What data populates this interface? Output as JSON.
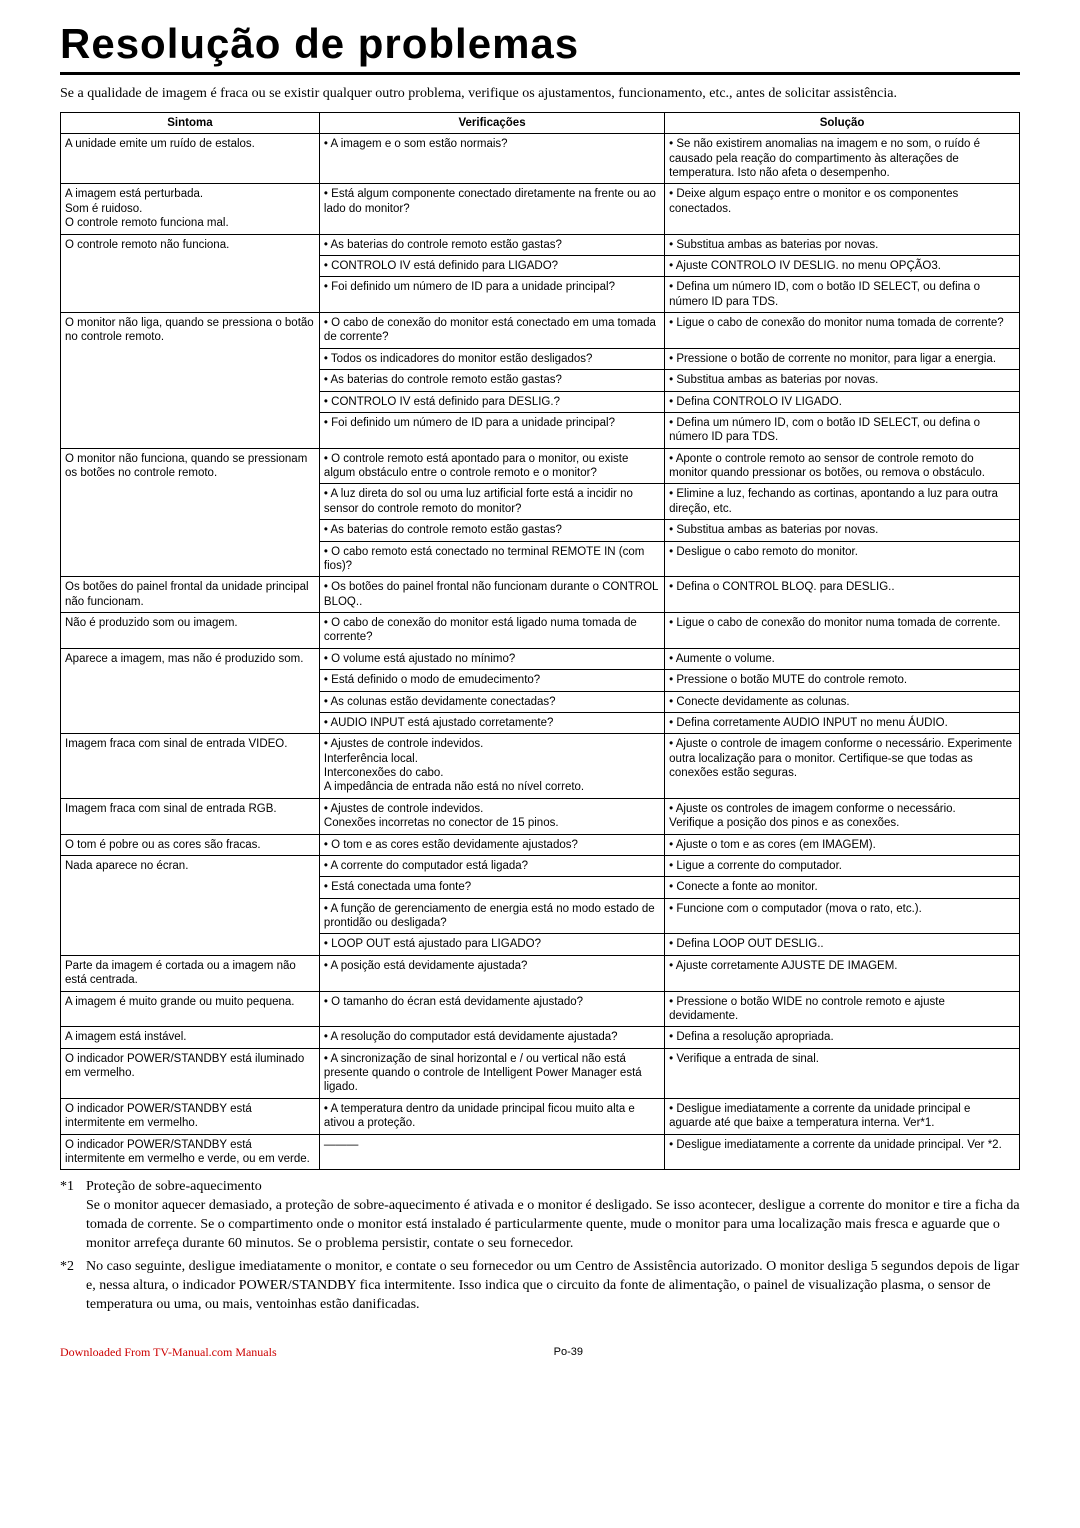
{
  "title": "Resolução de problemas",
  "intro": "Se a qualidade de imagem é fraca ou se existir qualquer outro problema, verifique os ajustamentos, funcionamento, etc., antes de solicitar assistência.",
  "columns": [
    "Sintoma",
    "Verificações",
    "Solução"
  ],
  "rows": [
    {
      "symptom": "A unidade emite um ruído de estalos.",
      "pairs": [
        {
          "c": "• A imagem e o som estão normais?",
          "s": "• Se não existirem anomalias na imagem e no som, o ruído é causado pela reação do compartimento às alterações de temperatura. Isto não afeta o desempenho."
        }
      ]
    },
    {
      "symptom": "A imagem está perturbada.\nSom é ruidoso.\nO controle remoto funciona mal.",
      "pairs": [
        {
          "c": "• Está algum componente conectado diretamente na frente ou ao lado do monitor?",
          "s": "• Deixe algum espaço entre o monitor e os componentes conectados."
        }
      ]
    },
    {
      "symptom": "O controle remoto não funciona.",
      "pairs": [
        {
          "c": "• As baterias do controle remoto estão gastas?",
          "s": "• Substitua ambas as baterias por novas."
        },
        {
          "c": "• CONTROLO IV está definido para LIGADO?",
          "s": "• Ajuste CONTROLO IV DESLIG. no menu OPÇÃO3."
        },
        {
          "c": "• Foi definido um número de ID para a unidade principal?",
          "s": "• Defina um número ID, com o botão ID SELECT, ou defina o número ID para TDS."
        }
      ]
    },
    {
      "symptom": "O monitor não liga, quando se pressiona o botão no controle remoto.",
      "pairs": [
        {
          "c": "• O cabo de conexão do monitor está conectado em uma tomada de corrente?",
          "s": "• Ligue o cabo de conexão do monitor numa tomada de corrente?"
        },
        {
          "c": "• Todos os indicadores do monitor estão desligados?",
          "s": "• Pressione o botão de corrente no monitor, para ligar a energia."
        },
        {
          "c": "• As baterias do controle remoto estão gastas?",
          "s": "• Substitua ambas as baterias por novas."
        },
        {
          "c": "• CONTROLO IV está definido para DESLIG.?",
          "s": "• Defina CONTROLO IV LIGADO."
        },
        {
          "c": "• Foi definido um número de ID para a unidade principal?",
          "s": "• Defina um número ID, com o botão ID SELECT, ou defina o número ID para TDS."
        }
      ]
    },
    {
      "symptom": "O monitor não funciona, quando se pressionam os botões no controle remoto.",
      "pairs": [
        {
          "c": "• O controle remoto está apontado para o monitor, ou existe algum obstáculo entre o controle remoto e o monitor?",
          "s": "• Aponte o controle remoto ao sensor de controle remoto do monitor quando pressionar os botões, ou remova o obstáculo."
        },
        {
          "c": "• A luz direta do sol ou uma luz artificial forte está a incidir no sensor do controle remoto do monitor?",
          "s": "• Elimine a luz, fechando as cortinas, apontando a luz para outra direção, etc."
        },
        {
          "c": "• As baterias do controle remoto estão gastas?",
          "s": "• Substitua ambas as baterias por novas."
        },
        {
          "c": "• O cabo remoto está conectado no terminal REMOTE IN (com fios)?",
          "s": "• Desligue o cabo remoto do monitor."
        }
      ]
    },
    {
      "symptom": "Os botões do painel frontal da unidade principal não funcionam.",
      "pairs": [
        {
          "c": "• Os botões do painel frontal não funcionam durante o CONTROL BLOQ..",
          "s": "• Defina o CONTROL BLOQ. para DESLIG.."
        }
      ]
    },
    {
      "symptom": "Não é produzido som ou imagem.",
      "pairs": [
        {
          "c": "• O cabo de conexão do monitor está ligado numa tomada de corrente?",
          "s": "• Ligue o cabo de conexão do monitor numa tomada de corrente."
        }
      ]
    },
    {
      "symptom": "Aparece a imagem, mas não é produzido som.",
      "pairs": [
        {
          "c": "• O volume está ajustado no mínimo?",
          "s": "• Aumente o volume."
        },
        {
          "c": "• Está definido o modo de emudecimento?",
          "s": "• Pressione o botão MUTE do controle remoto."
        },
        {
          "c": "• As colunas estão devidamente conectadas?",
          "s": "• Conecte devidamente as colunas."
        },
        {
          "c": "• AUDIO INPUT está ajustado corretamente?",
          "s": "• Defina corretamente AUDIO INPUT no menu ÁUDIO."
        }
      ]
    },
    {
      "symptom": "Imagem fraca com sinal de entrada VIDEO.",
      "pairs": [
        {
          "c": "• Ajustes de controle indevidos.\nInterferência local.\nInterconexões do cabo.\nA impedância de entrada não está no nível correto.",
          "s": "• Ajuste o controle de imagem conforme o necessário. Experimente outra localização para o monitor. Certifique-se que todas as conexões estão seguras."
        }
      ]
    },
    {
      "symptom": "Imagem fraca com sinal de entrada RGB.",
      "pairs": [
        {
          "c": "• Ajustes de controle indevidos.\nConexões incorretas no conector de 15 pinos.",
          "s": "• Ajuste os controles de imagem conforme o necessário.\nVerifique a posição dos pinos e as conexões."
        }
      ]
    },
    {
      "symptom": "O tom é pobre ou as cores são fracas.",
      "pairs": [
        {
          "c": "• O tom e as cores estão devidamente ajustados?",
          "s": "• Ajuste o tom e as cores (em IMAGEM)."
        }
      ]
    },
    {
      "symptom": "Nada aparece no écran.",
      "pairs": [
        {
          "c": "• A corrente do computador está ligada?",
          "s": "• Ligue a corrente do computador."
        },
        {
          "c": "• Está conectada uma fonte?",
          "s": "• Conecte a fonte ao monitor."
        },
        {
          "c": "• A função de gerenciamento de energia está no modo estado de prontidão ou desligada?",
          "s": "• Funcione com o computador (mova o rato, etc.)."
        },
        {
          "c": "• LOOP OUT está ajustado para LIGADO?",
          "s": "• Defina LOOP OUT DESLIG.."
        }
      ]
    },
    {
      "symptom": "Parte da imagem é cortada ou a imagem não está centrada.",
      "pairs": [
        {
          "c": "• A posição está devidamente ajustada?",
          "s": "• Ajuste corretamente AJUSTE DE IMAGEM."
        }
      ]
    },
    {
      "symptom": "A imagem é muito grande ou muito pequena.",
      "pairs": [
        {
          "c": "• O tamanho do écran está devidamente ajustado?",
          "s": "• Pressione o botão WIDE no controle remoto e ajuste devidamente."
        }
      ]
    },
    {
      "symptom": "A imagem está instável.",
      "pairs": [
        {
          "c": "• A resolução do computador está devidamente ajustada?",
          "s": "• Defina a resolução apropriada."
        }
      ]
    },
    {
      "symptom": "O indicador POWER/STANDBY está iluminado em vermelho.",
      "pairs": [
        {
          "c": "• A sincronização de sinal horizontal e / ou vertical não está presente quando o controle de Intelligent Power Manager está ligado.",
          "s": "• Verifique a entrada de sinal."
        }
      ]
    },
    {
      "symptom": "O indicador POWER/STANDBY está intermitente em vermelho.",
      "pairs": [
        {
          "c": "• A temperatura dentro da unidade principal ficou muito alta e ativou a proteção.",
          "s": "• Desligue imediatamente a corrente da unidade principal e aguarde até que baixe a temperatura interna. Ver*1."
        }
      ]
    },
    {
      "symptom": "O indicador POWER/STANDBY está intermitente em vermelho e verde, ou em verde.",
      "pairs": [
        {
          "c": "———",
          "s": "• Desligue imediatamente a corrente da unidade principal. Ver *2.",
          "dash": true
        }
      ]
    }
  ],
  "footnotes": [
    {
      "label": "*1",
      "title": "Proteção de sobre-aquecimento",
      "body": "Se o monitor aquecer demasiado, a proteção de sobre-aquecimento é ativada e o monitor é desligado. Se isso acontecer, desligue a corrente do monitor e tire a ficha da tomada de corrente. Se o compartimento onde o monitor está instalado é particularmente quente, mude o monitor para uma localização mais fresca e aguarde que o monitor arrefeça durante 60 minutos. Se o problema persistir, contate o seu fornecedor."
    },
    {
      "label": "*2",
      "title": "",
      "body": "No caso seguinte, desligue imediatamente o monitor, e contate o seu fornecedor ou um Centro de Assistência autorizado. O monitor desliga 5 segundos depois de ligar e, nessa altura, o indicador POWER/STANDBY fica intermitente. Isso indica que o circuito da fonte de alimentação, o painel de visualização plasma, o sensor de temperatura ou uma, ou mais, ventoinhas estão danificadas."
    }
  ],
  "footer_left": "Downloaded From TV-Manual.com Manuals",
  "footer_center": "Po-39"
}
